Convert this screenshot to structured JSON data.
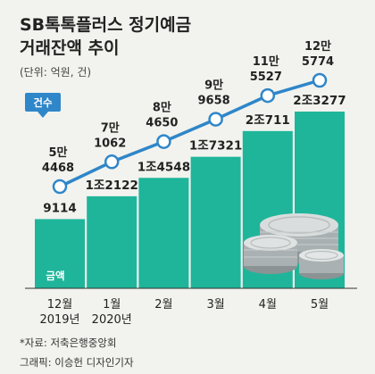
{
  "header": {
    "title_line1": "SB톡톡플러스 정기예금",
    "title_line2": "거래잔액 추이",
    "unit_note": "(단위: 억원, 건)"
  },
  "legend": {
    "count_badge": "건수",
    "amount_badge": "금액"
  },
  "footer": {
    "source": "*자료: 저축은행중앙회",
    "credit": "그래픽: 이승헌 디자인기자"
  },
  "colors": {
    "bar": "#1fb59a",
    "line": "#2f86c9",
    "background": "#f2f3ee"
  },
  "chart_data": {
    "type": "bar",
    "categories": [
      "12월\n2019년",
      "1월\n2020년",
      "2월",
      "3월",
      "4월",
      "5월"
    ],
    "series": [
      {
        "name": "금액",
        "type": "bar",
        "values": [
          9114,
          12122,
          14548,
          17321,
          20711,
          23277
        ],
        "labels": [
          "9114",
          "1조2122",
          "1조4548",
          "1조7321",
          "2조711",
          "2조3277"
        ]
      },
      {
        "name": "건수",
        "type": "line",
        "values": [
          54468,
          71062,
          84650,
          99658,
          115527,
          125774
        ],
        "labels_top": [
          "5만",
          "7만",
          "8만",
          "9만",
          "11만",
          "12만"
        ],
        "labels_bottom": [
          "4468",
          "1062",
          "4650",
          "9658",
          "5527",
          "5774"
        ]
      }
    ]
  }
}
